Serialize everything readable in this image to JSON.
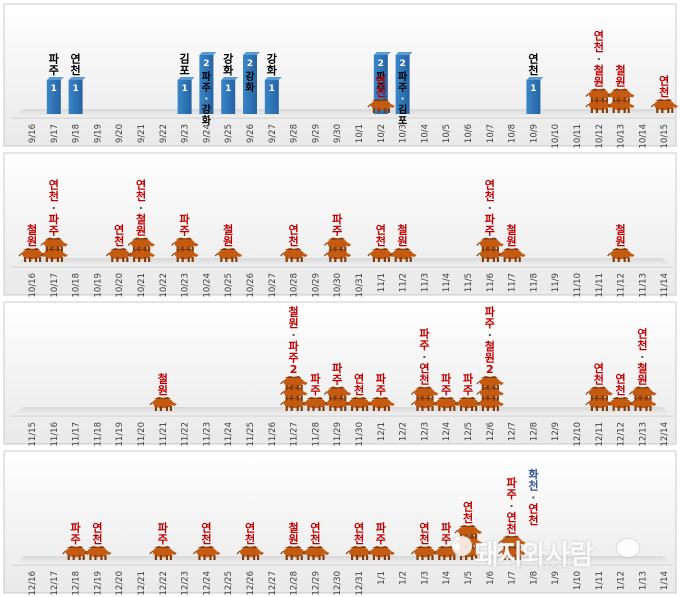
{
  "colors": {
    "bar": "#2e75b6",
    "bar_label": "#ffffff",
    "boar": "#c55a11",
    "boar_dark": "#843c0c",
    "region_red": "#c00000",
    "region_black": "#000000",
    "region_blue": "#2f5597",
    "tick": "#404040"
  },
  "watermark": {
    "text": "돼지와사람",
    "subtext": "PIG & PEOPLE"
  },
  "chart_data": [
    {
      "type": "bar",
      "panel": 1,
      "categories": [
        "9/16",
        "9/17",
        "9/18",
        "9/19",
        "9/20",
        "9/21",
        "9/22",
        "9/23",
        "9/24",
        "9/25",
        "9/26",
        "9/27",
        "9/28",
        "9/29",
        "9/30",
        "10/1",
        "10/2",
        "10/3",
        "10/4",
        "10/5",
        "10/6",
        "10/7",
        "10/8",
        "10/9",
        "10/10",
        "10/11",
        "10/12",
        "10/13",
        "10/14",
        "10/15"
      ],
      "series": [
        {
          "name": "",
          "values": [
            0,
            1,
            1,
            0,
            0,
            0,
            0,
            1,
            2,
            1,
            2,
            1,
            0,
            0,
            0,
            0,
            2,
            2,
            0,
            0,
            0,
            0,
            0,
            1,
            0,
            0,
            0,
            0,
            0,
            0
          ]
        }
      ],
      "bar_labels": {
        "1": "파주",
        "2": "연천",
        "7": "김포",
        "8": "파주·강화",
        "9": "강화",
        "10": "강화",
        "11": "강화",
        "16": "파주",
        "17": "파주·김포",
        "23": "연천"
      },
      "wild_boar": {
        "counts": {
          "16": 1,
          "26": 2,
          "27": 2,
          "29": 1
        },
        "labels": {
          "16": "연천",
          "26": "연천·철원",
          "27": "철원",
          "29": "연천"
        }
      }
    },
    {
      "type": "bar",
      "panel": 2,
      "categories": [
        "10/16",
        "10/17",
        "10/18",
        "10/19",
        "10/20",
        "10/21",
        "10/22",
        "10/23",
        "10/24",
        "10/25",
        "10/26",
        "10/27",
        "10/28",
        "10/29",
        "10/30",
        "10/31",
        "11/1",
        "11/2",
        "11/3",
        "11/4",
        "11/5",
        "11/6",
        "11/7",
        "11/8",
        "11/9",
        "11/10",
        "11/11",
        "11/12",
        "11/13",
        "11/14"
      ],
      "wild_boar": {
        "counts": {
          "0": 1,
          "1": 2,
          "4": 1,
          "5": 2,
          "7": 2,
          "9": 1,
          "12": 1,
          "14": 2,
          "16": 1,
          "17": 1,
          "21": 2,
          "22": 1,
          "27": 1
        },
        "labels": {
          "0": "철원",
          "1": "연천·파주",
          "4": "연천",
          "5": "연천·철원",
          "7": "파주",
          "9": "철원",
          "12": "연천",
          "14": "파주",
          "16": "연천",
          "17": "철원",
          "21": "연천·파주",
          "22": "철원",
          "27": "철원"
        }
      }
    },
    {
      "type": "bar",
      "panel": 3,
      "categories": [
        "11/15",
        "11/16",
        "11/17",
        "11/18",
        "11/19",
        "11/20",
        "11/21",
        "11/22",
        "11/23",
        "11/24",
        "11/25",
        "11/26",
        "11/27",
        "11/28",
        "11/29",
        "11/30",
        "12/1",
        "12/2",
        "12/3",
        "12/4",
        "12/5",
        "12/6",
        "12/7",
        "12/8",
        "12/9",
        "12/10",
        "12/11",
        "12/12",
        "12/13",
        "12/14",
        "12/15"
      ],
      "wild_boar": {
        "counts": {
          "6": 1,
          "12": 3,
          "13": 1,
          "14": 2,
          "15": 1,
          "16": 1,
          "18": 2,
          "19": 1,
          "20": 1,
          "21": 3,
          "26": 2,
          "27": 1,
          "28": 2
        },
        "labels": {
          "6": "철원",
          "12": "철원·파주2",
          "13": "파주",
          "14": "파주",
          "15": "연천",
          "16": "파주",
          "18": "파주·연천",
          "19": "파주",
          "20": "파주",
          "21": "파주·철원2",
          "26": "연천",
          "27": "연천",
          "28": "연천·철원"
        }
      }
    },
    {
      "type": "bar",
      "panel": 4,
      "categories": [
        "12/16",
        "12/17",
        "12/18",
        "12/19",
        "12/20",
        "12/21",
        "12/22",
        "12/23",
        "12/24",
        "12/25",
        "12/26",
        "12/27",
        "12/28",
        "12/29",
        "12/30",
        "12/31",
        "1/1",
        "1/2",
        "1/3",
        "1/4",
        "1/5",
        "1/6",
        "1/7",
        "1/8",
        "1/9",
        "1/10",
        "1/11",
        "1/12",
        "1/13",
        "1/14"
      ],
      "wild_boar": {
        "counts": {
          "2": 1,
          "3": 1,
          "6": 1,
          "8": 1,
          "10": 1,
          "12": 1,
          "13": 1,
          "15": 1,
          "16": 1,
          "18": 1,
          "19": 1,
          "20": 3,
          "22": 2
        },
        "labels": {
          "2": "파주",
          "3": "연천",
          "6": "파주",
          "8": "연천",
          "10": "연천",
          "12": "철원",
          "13": "연천",
          "15": "연천",
          "16": "파주",
          "18": "연천",
          "19": "파주",
          "20": "연천",
          "22": "파주·연천"
        }
      },
      "extra_labels": {
        "23": {
          "text": "화천·연천",
          "colors": [
            "blue",
            "red"
          ]
        }
      }
    }
  ]
}
